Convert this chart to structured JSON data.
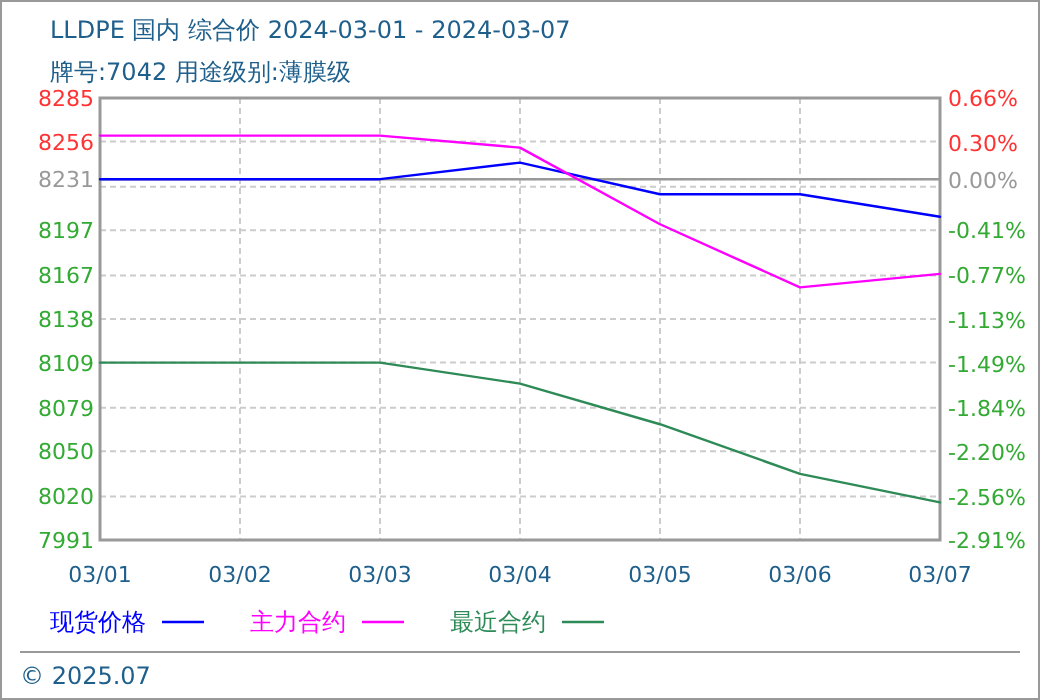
{
  "chart_data": {
    "type": "line",
    "title": "LLDPE 国内 综合价 2024-03-01 - 2024-03-07",
    "subtitle": "牌号:7042 用途级别:薄膜级",
    "categories": [
      "03/01",
      "03/02",
      "03/03",
      "03/04",
      "03/05",
      "03/06",
      "03/07"
    ],
    "series": [
      {
        "name": "现货价格",
        "color": "#0000ff",
        "values": [
          8231,
          8231,
          8231,
          8242,
          8221,
          8221,
          8206
        ]
      },
      {
        "name": "主力合约",
        "color": "#ff00ff",
        "values": [
          8260,
          8260,
          8260,
          8252,
          8201,
          8159,
          8168
        ]
      },
      {
        "name": "最近合约",
        "color": "#2e8b57",
        "values": [
          8109,
          8109,
          8109,
          8095,
          8068,
          8035,
          8016
        ]
      }
    ],
    "ylim": [
      7991,
      8285
    ],
    "yticks": [
      8285,
      8256,
      {
        "value": 8226,
        "label": null
      },
      8231,
      8197,
      8167,
      8138,
      8109,
      8079,
      8050,
      8020,
      7991
    ],
    "y2lim": [
      -2.91,
      0.66
    ],
    "y2ticks": [
      {
        "value": 0.66,
        "label": "0.66%"
      },
      {
        "value": 0.3,
        "label": "0.30%"
      },
      {
        "value": 0.0,
        "label": "0.00%"
      },
      {
        "value": -0.41,
        "label": "-0.41%"
      },
      {
        "value": -0.77,
        "label": "-0.77%"
      },
      {
        "value": -1.13,
        "label": "-1.13%"
      },
      {
        "value": -1.49,
        "label": "-1.49%"
      },
      {
        "value": -1.84,
        "label": "-1.84%"
      },
      {
        "value": -2.2,
        "label": "-2.20%"
      },
      {
        "value": -2.56,
        "label": "-2.56%"
      },
      {
        "value": -2.91,
        "label": "-2.91%"
      }
    ],
    "ref_lines": [
      {
        "axis": "y",
        "value": 8231,
        "color": "#999999"
      }
    ],
    "grid": true,
    "legend": "bottom",
    "marker": "none",
    "line_style": "solid",
    "annotations": [
      "© 2025.07"
    ]
  }
}
